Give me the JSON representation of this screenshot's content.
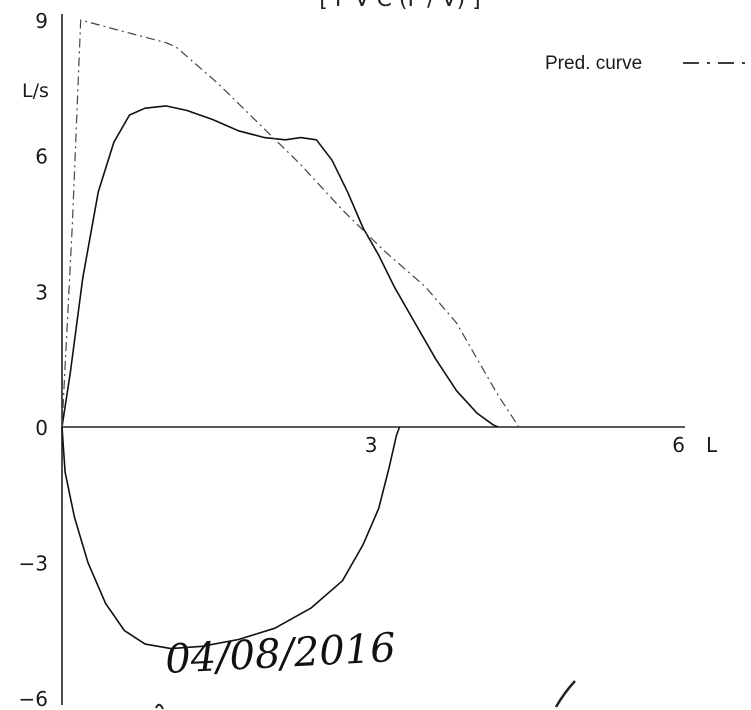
{
  "chart_data": {
    "type": "line",
    "title": "[ F V C (F / V) ]",
    "xlabel": "L",
    "ylabel": "L/s",
    "xlim": [
      0,
      6
    ],
    "ylim": [
      -6,
      9
    ],
    "x_ticks": [
      "3",
      "6"
    ],
    "y_ticks": [
      "9",
      "6",
      "3",
      "0",
      "−3",
      "−6"
    ],
    "grid": false,
    "legend_label": "Pred. curve",
    "series": [
      {
        "role": "measured-expiratory",
        "style": "solid",
        "points": [
          [
            0,
            0
          ],
          [
            0.08,
            1.2
          ],
          [
            0.2,
            3.3
          ],
          [
            0.35,
            5.2
          ],
          [
            0.5,
            6.3
          ],
          [
            0.65,
            6.9
          ],
          [
            0.8,
            7.05
          ],
          [
            1.0,
            7.1
          ],
          [
            1.2,
            7.0
          ],
          [
            1.45,
            6.8
          ],
          [
            1.7,
            6.55
          ],
          [
            1.95,
            6.4
          ],
          [
            2.15,
            6.35
          ],
          [
            2.3,
            6.4
          ],
          [
            2.45,
            6.35
          ],
          [
            2.6,
            5.9
          ],
          [
            2.75,
            5.2
          ],
          [
            2.9,
            4.4
          ],
          [
            3.05,
            3.8
          ],
          [
            3.2,
            3.1
          ],
          [
            3.4,
            2.3
          ],
          [
            3.6,
            1.5
          ],
          [
            3.8,
            0.8
          ],
          [
            4.0,
            0.3
          ],
          [
            4.15,
            0.05
          ],
          [
            4.2,
            0
          ]
        ]
      },
      {
        "role": "measured-inspiratory",
        "style": "solid",
        "points": [
          [
            0,
            0
          ],
          [
            0.03,
            -1.0
          ],
          [
            0.12,
            -2.0
          ],
          [
            0.25,
            -3.0
          ],
          [
            0.42,
            -3.9
          ],
          [
            0.6,
            -4.5
          ],
          [
            0.8,
            -4.8
          ],
          [
            1.05,
            -4.9
          ],
          [
            1.35,
            -4.85
          ],
          [
            1.7,
            -4.7
          ],
          [
            2.05,
            -4.45
          ],
          [
            2.4,
            -4.0
          ],
          [
            2.7,
            -3.4
          ],
          [
            2.9,
            -2.6
          ],
          [
            3.05,
            -1.8
          ],
          [
            3.15,
            -0.9
          ],
          [
            3.22,
            -0.2
          ],
          [
            3.25,
            0
          ]
        ]
      },
      {
        "role": "predicted",
        "name": "Pred. curve",
        "style": "dash-dot",
        "points": [
          [
            0,
            0
          ],
          [
            0.1,
            4.5
          ],
          [
            0.18,
            9.0
          ],
          [
            0.5,
            8.8
          ],
          [
            1.0,
            8.5
          ],
          [
            1.1,
            8.4
          ],
          [
            1.5,
            7.6
          ],
          [
            1.9,
            6.7
          ],
          [
            2.3,
            5.8
          ],
          [
            2.7,
            4.8
          ],
          [
            3.1,
            3.9
          ],
          [
            3.5,
            3.1
          ],
          [
            3.8,
            2.3
          ],
          [
            4.0,
            1.5
          ],
          [
            4.2,
            0.7
          ],
          [
            4.4,
            0
          ]
        ]
      }
    ]
  },
  "annotation": {
    "handwritten_date": "04/08/2016"
  }
}
